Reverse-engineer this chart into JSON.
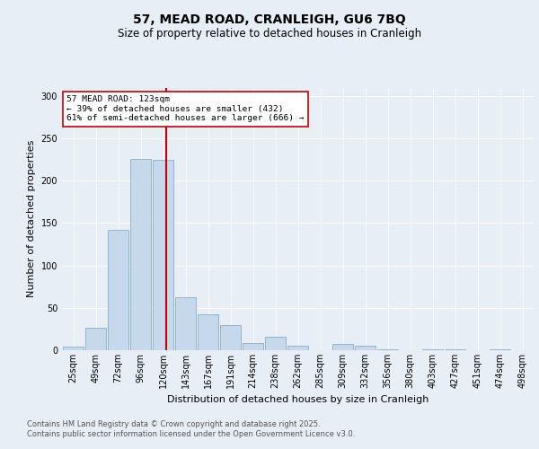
{
  "title": "57, MEAD ROAD, CRANLEIGH, GU6 7BQ",
  "subtitle": "Size of property relative to detached houses in Cranleigh",
  "xlabel": "Distribution of detached houses by size in Cranleigh",
  "ylabel": "Number of detached properties",
  "bin_labels": [
    "25sqm",
    "49sqm",
    "72sqm",
    "96sqm",
    "120sqm",
    "143sqm",
    "167sqm",
    "191sqm",
    "214sqm",
    "238sqm",
    "262sqm",
    "285sqm",
    "309sqm",
    "332sqm",
    "356sqm",
    "380sqm",
    "403sqm",
    "427sqm",
    "451sqm",
    "474sqm",
    "498sqm"
  ],
  "hist_values": [
    4,
    27,
    142,
    226,
    225,
    63,
    42,
    30,
    9,
    16,
    5,
    0,
    7,
    5,
    1,
    0,
    1,
    1,
    0,
    1,
    0
  ],
  "property_size_idx": 4,
  "property_size_label": "123sqm",
  "bar_color": "#c6d9ec",
  "bar_edge_color": "#8aaec8",
  "vline_color": "#cc0000",
  "annotation_text": "57 MEAD ROAD: 123sqm\n← 39% of detached houses are smaller (432)\n61% of semi-detached houses are larger (666) →",
  "annotation_box_facecolor": "#ffffff",
  "annotation_box_edgecolor": "#cc0000",
  "bg_color": "#e8eef5",
  "plot_bg_color": "#e8eef5",
  "footer_text": "Contains HM Land Registry data © Crown copyright and database right 2025.\nContains public sector information licensed under the Open Government Licence v3.0.",
  "ylim": [
    0,
    310
  ],
  "yticks": [
    0,
    50,
    100,
    150,
    200,
    250,
    300
  ],
  "title_fontsize": 10,
  "subtitle_fontsize": 8.5,
  "axis_label_fontsize": 8,
  "tick_fontsize": 7,
  "footer_fontsize": 6
}
